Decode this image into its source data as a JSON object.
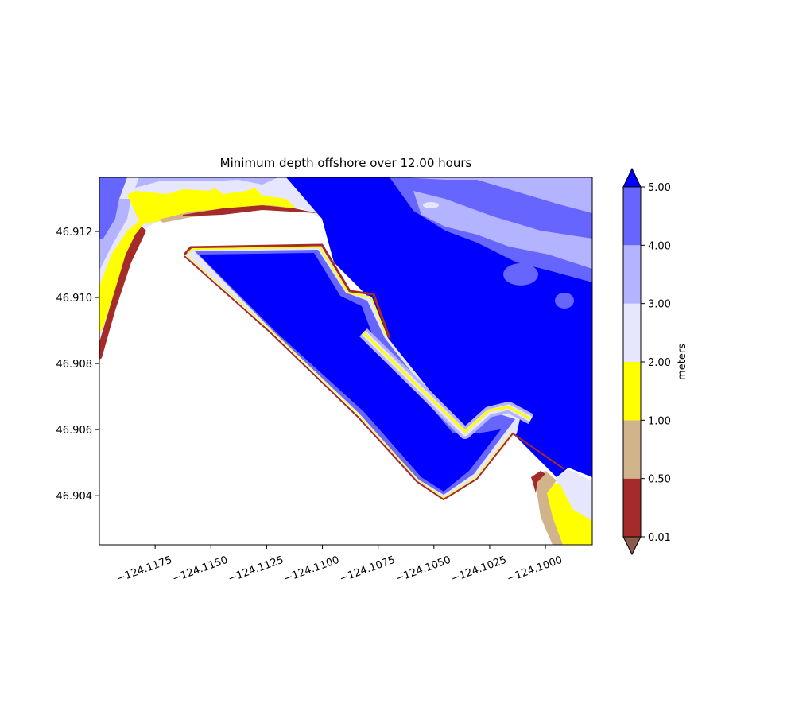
{
  "chart_data": {
    "type": "contour",
    "title": "Minimum depth offshore over 12.00 hours",
    "xlim": [
      -124.12,
      -124.0979
    ],
    "ylim": [
      46.90251,
      46.91364
    ],
    "xticks": [
      {
        "value": -124.1175,
        "label": "−124.1175"
      },
      {
        "value": -124.115,
        "label": "−124.1150"
      },
      {
        "value": -124.1125,
        "label": "−124.1125"
      },
      {
        "value": -124.11,
        "label": "−124.1100"
      },
      {
        "value": -124.1075,
        "label": "−124.1075"
      },
      {
        "value": -124.105,
        "label": "−124.1050"
      },
      {
        "value": -124.1025,
        "label": "−124.1025"
      },
      {
        "value": -124.1,
        "label": "−124.1000"
      }
    ],
    "yticks": [
      {
        "value": 46.91,
        "label": "46.910"
      },
      46.912,
      46.908,
      46.906,
      46.904
    ],
    "levels": [
      {
        "value": 0.01,
        "label": "0.01"
      },
      {
        "value": 0.5,
        "label": "0.50"
      },
      {
        "value": 1,
        "label": "1.00"
      },
      {
        "value": 2,
        "label": "2.00"
      },
      {
        "value": 3,
        "label": "3.00"
      },
      {
        "value": 4,
        "label": "4.00"
      },
      {
        "value": 5,
        "label": "5.00"
      }
    ],
    "colors": [
      "#a52a2a",
      "#d2b48c",
      "#ffff00",
      "#e6e6ff",
      "#b3b3ff",
      "#6666ff"
    ],
    "under_color": "#8b5a4a",
    "over_color": "#0000ff",
    "colorbar_label": "meters"
  }
}
